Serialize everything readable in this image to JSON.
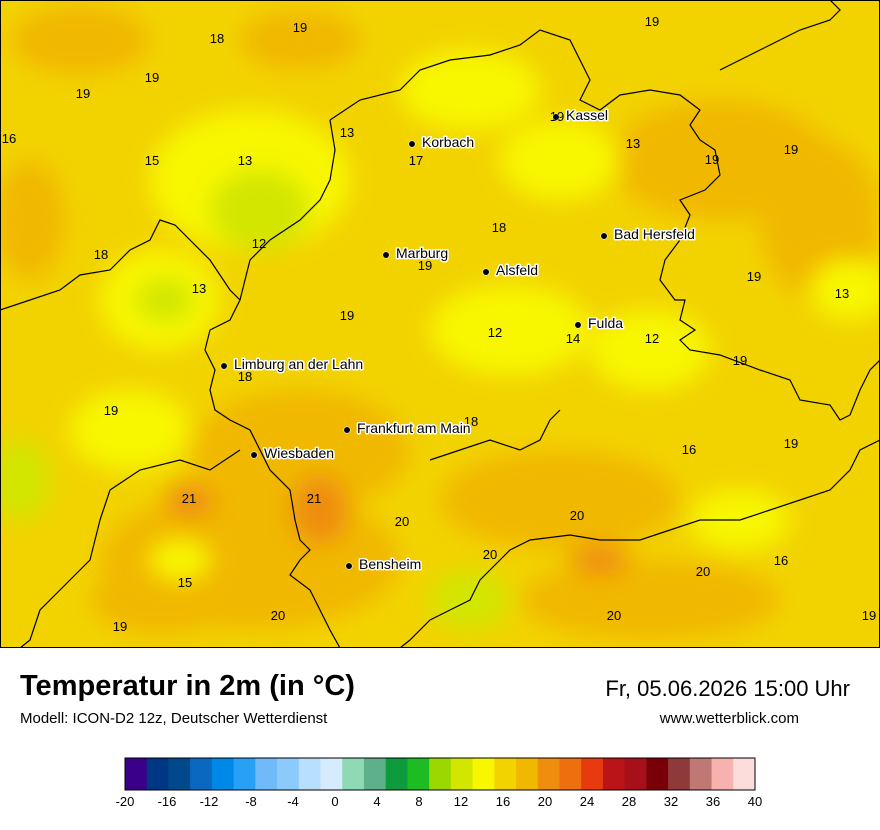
{
  "title": "Temperatur in 2m (in °C)",
  "model": "Modell: ICON-D2 12z, Deutscher Wetterdienst",
  "datetime": "Fr, 05.06.2026 15:00 Uhr",
  "website": "www.wetterblick.com",
  "cities": [
    {
      "name": "Kassel"
    },
    {
      "name": "Korbach"
    },
    {
      "name": "Bad Hersfeld"
    },
    {
      "name": "Marburg"
    },
    {
      "name": "Alsfeld"
    },
    {
      "name": "Fulda"
    },
    {
      "name": "Limburg an der Lahn"
    },
    {
      "name": "Frankfurt am Main"
    },
    {
      "name": "Wiesbaden"
    },
    {
      "name": "Bensheim"
    }
  ],
  "temperature_labels": [
    "19",
    "18",
    "19",
    "19",
    "16",
    "13",
    "15",
    "13",
    "17",
    "19",
    "13",
    "19",
    "19",
    "18",
    "12",
    "18",
    "19",
    "19",
    "13",
    "13",
    "19",
    "12",
    "14",
    "12",
    "18",
    "19",
    "19",
    "18",
    "19",
    "16",
    "21",
    "21",
    "19",
    "20",
    "20",
    "20",
    "20",
    "15",
    "16",
    "19",
    "20",
    "20",
    "19"
  ],
  "legend": {
    "ticks": [
      "-20",
      "-16",
      "-12",
      "-8",
      "-4",
      "0",
      "4",
      "8",
      "12",
      "16",
      "20",
      "24",
      "28",
      "32",
      "36",
      "40"
    ],
    "colors": [
      "#3b0088",
      "#003785",
      "#004a8c",
      "#0a68c0",
      "#0088e8",
      "#27a0f5",
      "#70baf9",
      "#8ccafc",
      "#b8dffe",
      "#d6ecfe",
      "#8fd9b4",
      "#5db08a",
      "#0d9b3d",
      "#1cbc22",
      "#9bd700",
      "#d2e600",
      "#f8f700",
      "#f2d300",
      "#f1b800",
      "#ef8d0e",
      "#ee6f10",
      "#e73a0e",
      "#bb1418",
      "#a6101b",
      "#7a0008",
      "#8f3a3a",
      "#c07874",
      "#f7b2b0",
      "#fbdedc"
    ]
  }
}
